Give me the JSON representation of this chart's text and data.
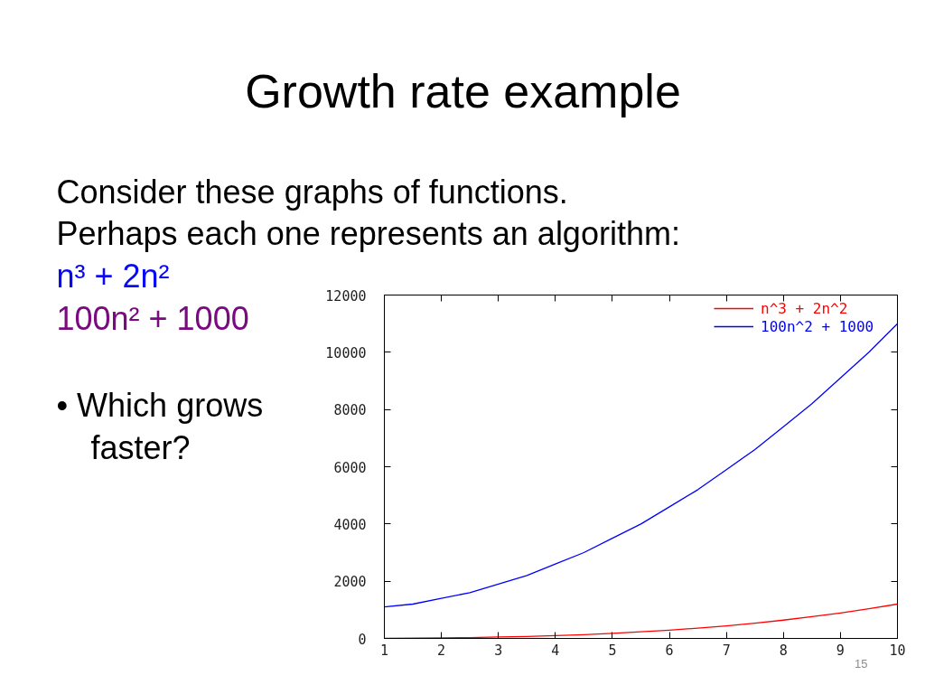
{
  "chart_data": {
    "type": "line",
    "title": "Growth rate example",
    "annotations": [
      "Consider these graphs of functions.",
      "Perhaps each one represents an algorithm:",
      "n³ + 2n²",
      "100n² + 1000",
      "• Which grows faster?",
      "15"
    ],
    "x": [
      1,
      1.5,
      2,
      2.5,
      3,
      3.5,
      4,
      4.5,
      5,
      5.5,
      6,
      6.5,
      7,
      7.5,
      8,
      8.5,
      9,
      9.5,
      10
    ],
    "series": [
      {
        "name": "n^3 + 2n^2",
        "color": "#ff0000",
        "values": [
          0,
          10,
          20,
          30,
          50,
          70,
          100,
          130,
          180,
          230,
          290,
          360,
          440,
          530,
          640,
          760,
          890,
          1040,
          1200
        ]
      },
      {
        "name": "100n^2 + 1000",
        "color": "#0000ff",
        "values": [
          1100,
          1200,
          1400,
          1600,
          1900,
          2200,
          2600,
          3000,
          3500,
          4000,
          4600,
          5200,
          5900,
          6600,
          7400,
          8200,
          9100,
          10000,
          11000
        ]
      }
    ],
    "xlim": [
      1,
      10
    ],
    "ylim": [
      0,
      12000
    ],
    "xticks": [
      1,
      2,
      3,
      4,
      5,
      6,
      7,
      8,
      9,
      10
    ],
    "yticks": [
      0,
      2000,
      4000,
      6000,
      8000,
      10000,
      12000
    ],
    "legend": "top right"
  }
}
